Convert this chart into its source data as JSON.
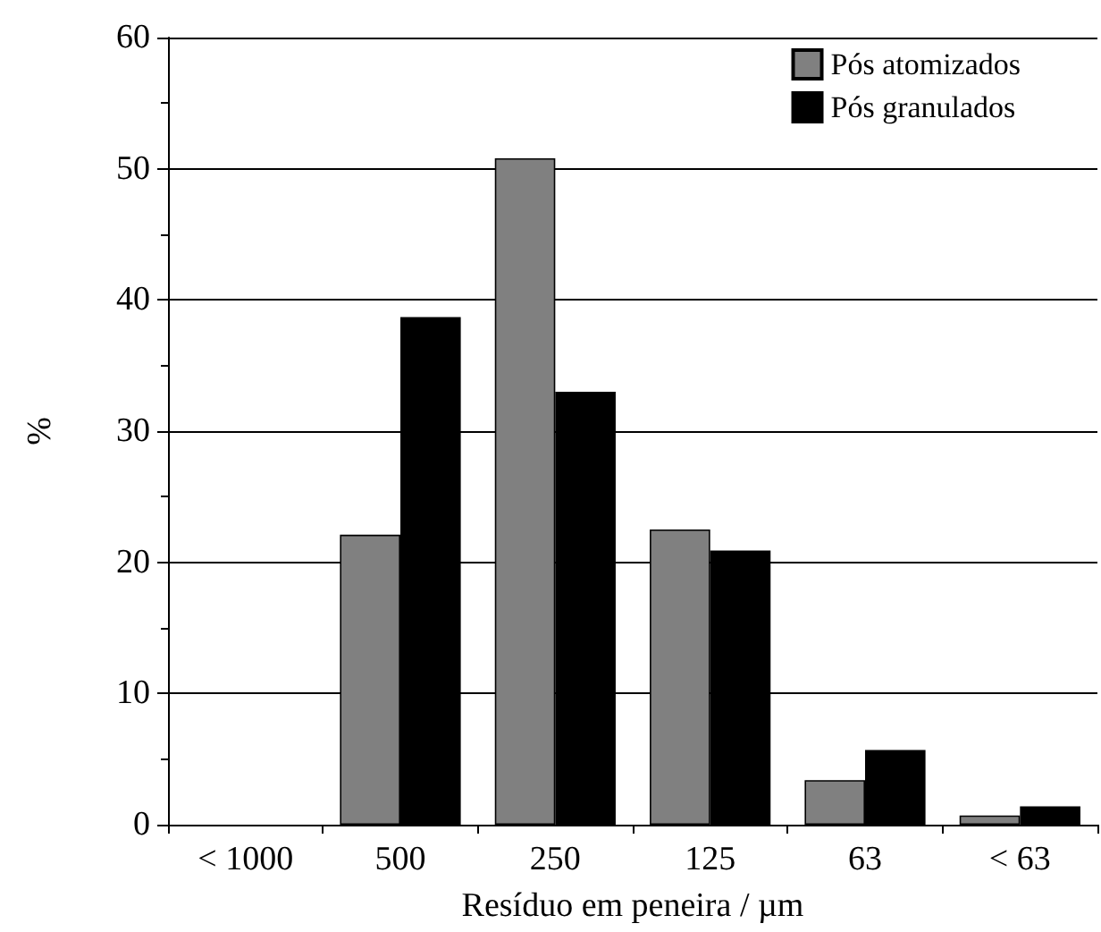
{
  "chart_data": {
    "type": "bar",
    "xlabel": "Resíduo em peneira / µm",
    "ylabel": "%",
    "categories": [
      "< 1000",
      "500",
      "250",
      "125",
      "63",
      "< 63"
    ],
    "series": [
      {
        "name": "Pós atomizados",
        "color": "#808080",
        "values": [
          null,
          22.1,
          50.8,
          22.5,
          3.4,
          0.7
        ]
      },
      {
        "name": "Pós granulados",
        "color": "#000000",
        "values": [
          null,
          38.7,
          33.0,
          20.9,
          5.7,
          1.4
        ]
      }
    ],
    "ylim": [
      0,
      60
    ],
    "yticks": [
      0,
      10,
      20,
      30,
      40,
      50,
      60
    ],
    "grid": "y",
    "legend": "top right"
  }
}
